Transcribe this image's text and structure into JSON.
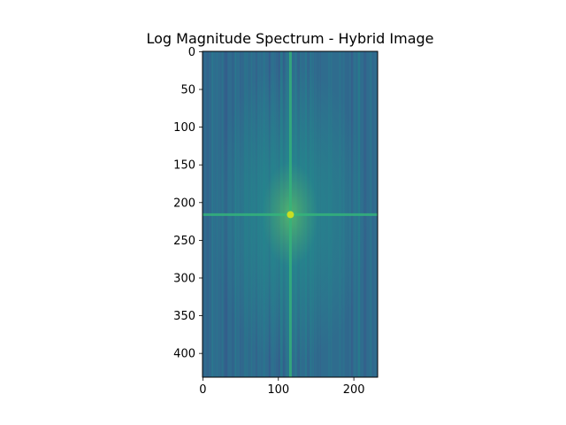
{
  "chart_data": {
    "type": "heatmap",
    "title": "Log Magnitude Spectrum - Hybrid Image",
    "xlabel": "",
    "ylabel": "",
    "image_width": 232,
    "image_height": 432,
    "xlim": [
      -0.5,
      231.5
    ],
    "ylim": [
      431.5,
      -0.5
    ],
    "x_ticks": [
      {
        "value": 0,
        "label": "0"
      },
      {
        "value": 100,
        "label": "100"
      },
      {
        "value": 200,
        "label": "200"
      }
    ],
    "y_ticks": [
      {
        "value": 0,
        "label": "0"
      },
      {
        "value": 50,
        "label": "50"
      },
      {
        "value": 100,
        "label": "100"
      },
      {
        "value": 150,
        "label": "150"
      },
      {
        "value": 200,
        "label": "200"
      },
      {
        "value": 250,
        "label": "250"
      },
      {
        "value": 300,
        "label": "300"
      },
      {
        "value": 350,
        "label": "350"
      },
      {
        "value": 400,
        "label": "400"
      }
    ],
    "colormap": "viridis",
    "center_x": 116,
    "center_y": 216,
    "grid": false,
    "colors": {
      "low": "#3b528b",
      "mid": "#21918c",
      "high": "#5ec962",
      "peak": "#fde725"
    }
  }
}
